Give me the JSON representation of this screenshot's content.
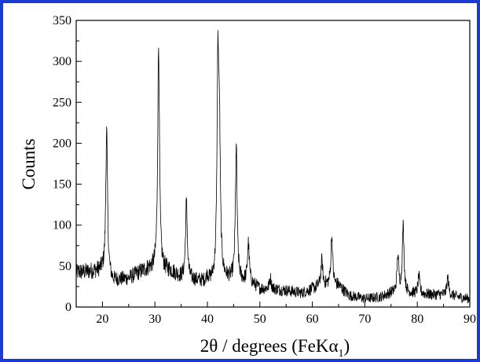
{
  "chart_data": {
    "type": "line",
    "title": "",
    "xlabel": "2θ / degrees (FeKα",
    "xlabel_subscript": "1",
    "xlabel_close": ")",
    "ylabel": "Counts",
    "xlim": [
      15,
      90
    ],
    "ylim": [
      0,
      350
    ],
    "xticks": [
      20,
      30,
      40,
      50,
      60,
      70,
      80,
      90
    ],
    "yticks": [
      0,
      50,
      100,
      150,
      200,
      250,
      300,
      350
    ],
    "grid": false,
    "legend": "none",
    "line_color": "#000000",
    "frame_color": "#1a3cd4",
    "baseline": [
      [
        15,
        42
      ],
      [
        20,
        45
      ],
      [
        22,
        32
      ],
      [
        25,
        35
      ],
      [
        27,
        42
      ],
      [
        29,
        47
      ],
      [
        33,
        44
      ],
      [
        35,
        36
      ],
      [
        38,
        32
      ],
      [
        40,
        30
      ],
      [
        43,
        34
      ],
      [
        46,
        32
      ],
      [
        48,
        30
      ],
      [
        50,
        22
      ],
      [
        52,
        22
      ],
      [
        55,
        20
      ],
      [
        58,
        17
      ],
      [
        60,
        22
      ],
      [
        62,
        27
      ],
      [
        65,
        26
      ],
      [
        67,
        14
      ],
      [
        70,
        10
      ],
      [
        73,
        12
      ],
      [
        75,
        17
      ],
      [
        78,
        17
      ],
      [
        80,
        16
      ],
      [
        83,
        15
      ],
      [
        86,
        15
      ],
      [
        88,
        12
      ],
      [
        90,
        10
      ]
    ],
    "peaks": [
      {
        "x": 20.8,
        "y": 216
      },
      {
        "x": 30.7,
        "y": 320
      },
      {
        "x": 36.0,
        "y": 128
      },
      {
        "x": 40.0,
        "y": 38
      },
      {
        "x": 42.0,
        "y": 285
      },
      {
        "x": 42.3,
        "y": 185
      },
      {
        "x": 45.5,
        "y": 194
      },
      {
        "x": 47.8,
        "y": 78
      },
      {
        "x": 52.0,
        "y": 35
      },
      {
        "x": 61.8,
        "y": 57
      },
      {
        "x": 63.7,
        "y": 87
      },
      {
        "x": 76.3,
        "y": 62
      },
      {
        "x": 77.3,
        "y": 99
      },
      {
        "x": 80.3,
        "y": 38
      },
      {
        "x": 85.8,
        "y": 36
      }
    ],
    "noise_amplitude": 8,
    "n_points": 1500
  }
}
